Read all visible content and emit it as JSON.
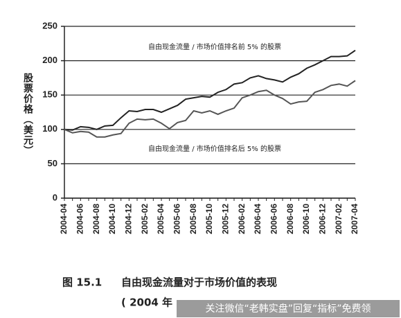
{
  "chart_data": {
    "type": "line",
    "y_label": "股票价格（美元）",
    "annotations": [
      "自由现金流量 / 市场价值排名前 5% 的股票",
      "自由现金流量 / 市场价值排名后 5% 的股票"
    ],
    "categories": [
      "2004-04",
      null,
      "2004-06",
      null,
      "2004-08",
      null,
      "2004-10",
      null,
      "2004-12",
      null,
      "2005-02",
      null,
      "2005-04",
      null,
      "2005-06",
      null,
      "2005-08",
      null,
      "2005-10",
      null,
      "2005-12",
      null,
      "2006-02",
      null,
      "2006-04",
      null,
      "2006-06",
      null,
      "2006-08",
      null,
      "2006-10",
      null,
      "2006-12",
      null,
      "2007-02",
      null,
      "2007-04"
    ],
    "series": [
      {
        "color": "#222222",
        "values": [
          100,
          99,
          104,
          103,
          100,
          105,
          106,
          117,
          127,
          126,
          129,
          129,
          125,
          130,
          135,
          144,
          146,
          148,
          147,
          154,
          158,
          166,
          168,
          175,
          178,
          174,
          172,
          169,
          176,
          181,
          189,
          194,
          200,
          206,
          206,
          207,
          215
        ]
      },
      {
        "color": "#555555",
        "values": [
          100,
          95,
          97,
          96,
          89,
          89,
          92,
          94,
          109,
          115,
          114,
          115,
          109,
          101,
          110,
          113,
          127,
          124,
          127,
          122,
          127,
          131,
          146,
          150,
          155,
          157,
          150,
          145,
          137,
          140,
          141,
          154,
          158,
          164,
          166,
          163,
          171
        ]
      }
    ],
    "ylim": [
      0,
      250
    ],
    "yticks": [
      0,
      50,
      100,
      150,
      200,
      250
    ],
    "grid": true,
    "caption": {
      "number": "图 15.1",
      "title": "自由现金流量对于市场价值的表现",
      "line2": "( 2004 年"
    },
    "watermark": "关注微信“老韩实盘”回复“指标”免费领"
  }
}
